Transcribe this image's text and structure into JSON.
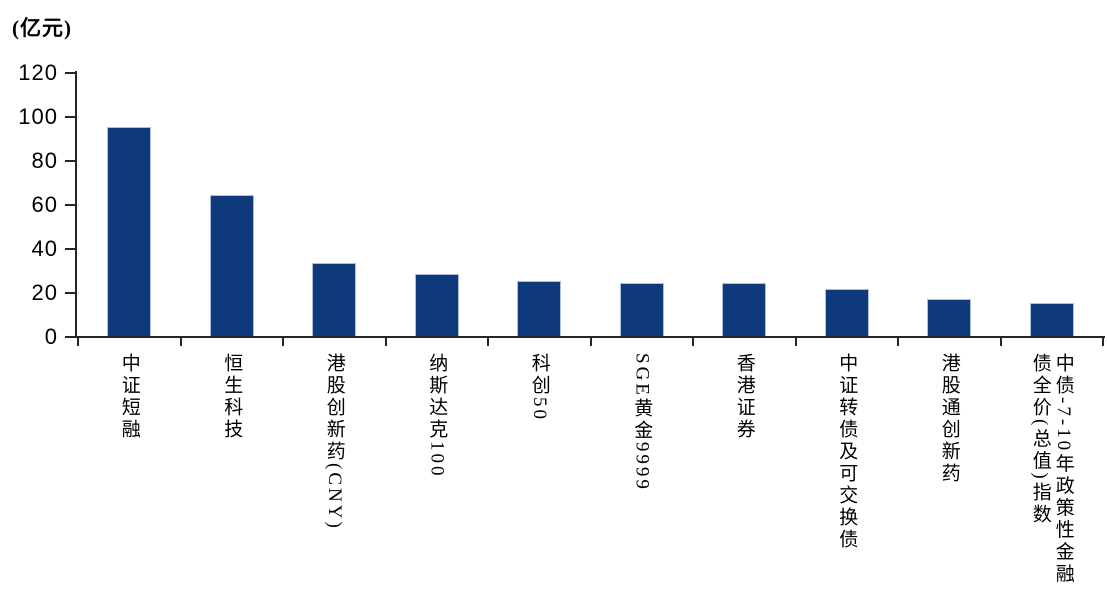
{
  "chart_data": {
    "type": "bar",
    "title": "",
    "unit_label": "(亿元)",
    "categories": [
      "中证短融",
      "恒生科技",
      "港股创新药(CNY)",
      "纳斯达克100",
      "科创50",
      "SGE黄金9999",
      "香港证券",
      "中证转债及可交换债",
      "港股通创新药",
      "中债-7-10年政策性金融债全价(总值)指数"
    ],
    "values": [
      95,
      64,
      33,
      28,
      25,
      24,
      24,
      21.5,
      17,
      15
    ],
    "xlabel": "",
    "ylabel": "",
    "ylim": [
      0,
      120
    ],
    "yticks": [
      0,
      20,
      40,
      60,
      80,
      100,
      120
    ],
    "grid": false,
    "legend_position": "none",
    "bar_color": "#0e3a7c",
    "bar_border_color": "#aebfd9",
    "axis_color": "#262626",
    "text_color": "#000000",
    "background_color": "#ffffff"
  }
}
